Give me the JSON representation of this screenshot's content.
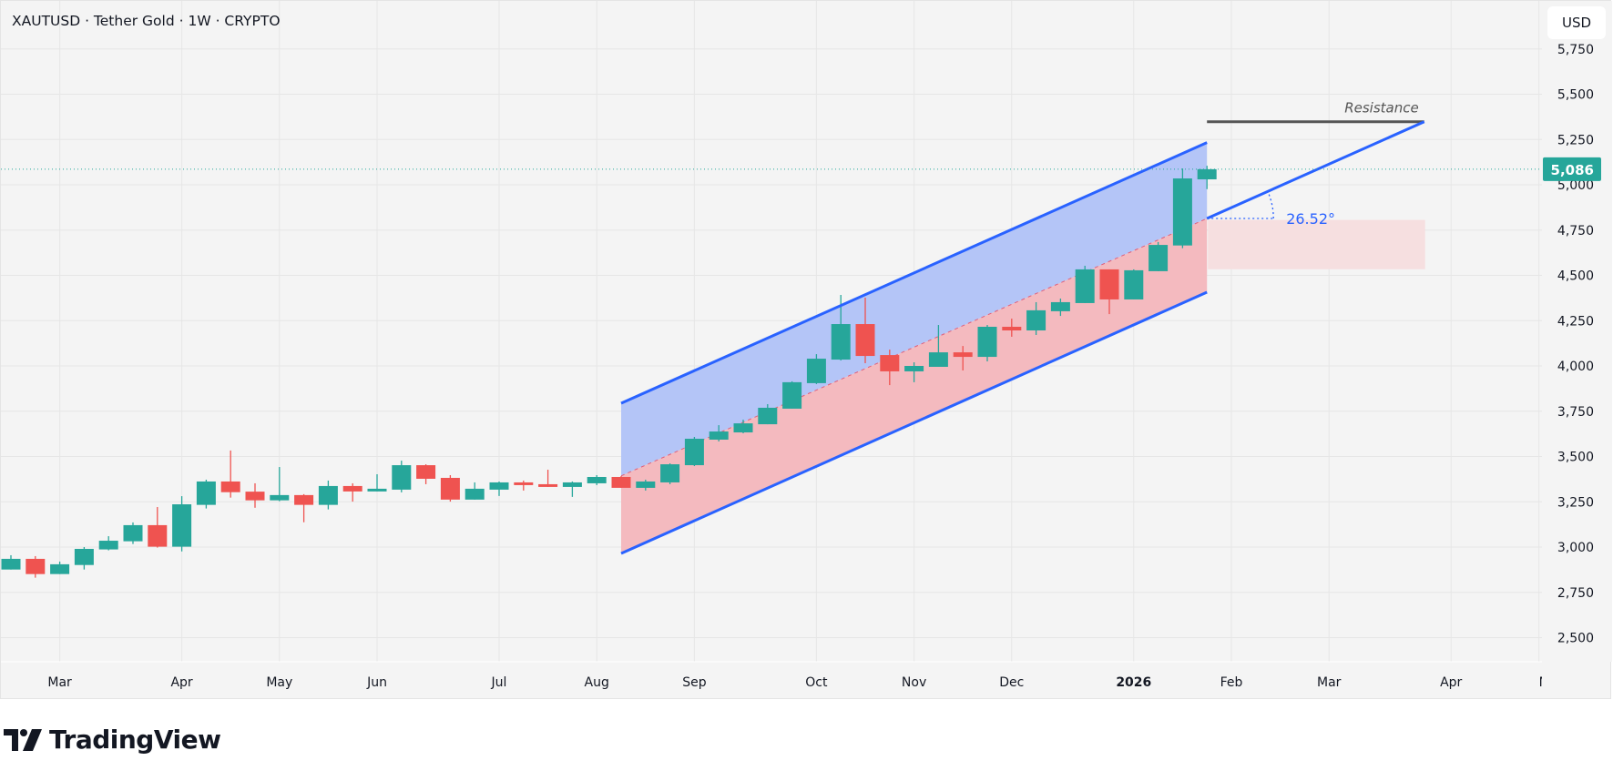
{
  "header": {
    "title": "XAUTUSD · Tether Gold · 1W · CRYPTO",
    "currency_button": "USD"
  },
  "branding": {
    "logo_text": "TradingView"
  },
  "colors": {
    "up": "#26a69a",
    "down": "#ef5350",
    "channel_line": "#2962ff",
    "channel_upper_fill": "#b4c5f7",
    "channel_lower_fill": "#f4babf",
    "zone_fill": "#f6dfe0",
    "resistance": "#555555",
    "grid": "#e6e6e6"
  },
  "chart_data": {
    "type": "candlestick",
    "symbol": "XAUTUSD",
    "timeframe": "1W",
    "ylim": [
      2400,
      5800
    ],
    "y_ticks": [
      2500,
      2750,
      3000,
      3250,
      3500,
      3750,
      4000,
      4250,
      4500,
      4750,
      5000,
      5250,
      5500,
      5750
    ],
    "last_price": 5086,
    "last_price_label": "5,086",
    "x_ticks": [
      {
        "label": "Mar",
        "bar": 2
      },
      {
        "label": "Apr",
        "bar": 7
      },
      {
        "label": "May",
        "bar": 11
      },
      {
        "label": "Jun",
        "bar": 15
      },
      {
        "label": "Jul",
        "bar": 20
      },
      {
        "label": "Aug",
        "bar": 24
      },
      {
        "label": "Sep",
        "bar": 28
      },
      {
        "label": "Oct",
        "bar": 33
      },
      {
        "label": "Nov",
        "bar": 37
      },
      {
        "label": "Dec",
        "bar": 41
      },
      {
        "label": "2026",
        "bar": 46,
        "bold": true
      },
      {
        "label": "Feb",
        "bar": 50
      },
      {
        "label": "Mar",
        "bar": 54
      },
      {
        "label": "Apr",
        "bar": 59
      },
      {
        "label": "M",
        "bar": 62.6
      }
    ],
    "candles": [
      [
        2876,
        2955,
        2876,
        2935
      ],
      [
        2935,
        2950,
        2831,
        2851
      ],
      [
        2851,
        2920,
        2851,
        2905
      ],
      [
        2901,
        3000,
        2876,
        2990
      ],
      [
        2987,
        3060,
        2982,
        3035
      ],
      [
        3032,
        3136,
        3017,
        3121
      ],
      [
        3121,
        3221,
        2997,
        3002
      ],
      [
        3002,
        3281,
        2976,
        3236
      ],
      [
        3233,
        3372,
        3213,
        3362
      ],
      [
        3362,
        3533,
        3273,
        3303
      ],
      [
        3306,
        3352,
        3217,
        3258
      ],
      [
        3258,
        3442,
        3253,
        3287
      ],
      [
        3287,
        3292,
        3137,
        3233
      ],
      [
        3233,
        3367,
        3208,
        3337
      ],
      [
        3337,
        3352,
        3251,
        3307
      ],
      [
        3307,
        3402,
        3307,
        3322
      ],
      [
        3317,
        3477,
        3302,
        3452
      ],
      [
        3452,
        3457,
        3347,
        3377
      ],
      [
        3382,
        3397,
        3251,
        3262
      ],
      [
        3262,
        3357,
        3262,
        3322
      ],
      [
        3317,
        3362,
        3282,
        3357
      ],
      [
        3357,
        3367,
        3312,
        3342
      ],
      [
        3347,
        3427,
        3332,
        3332
      ],
      [
        3332,
        3362,
        3277,
        3357
      ],
      [
        3352,
        3397,
        3342,
        3387
      ],
      [
        3387,
        3392,
        3327,
        3327
      ],
      [
        3327,
        3372,
        3312,
        3362
      ],
      [
        3357,
        3462,
        3347,
        3457
      ],
      [
        3452,
        3608,
        3447,
        3598
      ],
      [
        3593,
        3673,
        3583,
        3638
      ],
      [
        3633,
        3703,
        3628,
        3683
      ],
      [
        3678,
        3789,
        3678,
        3769
      ],
      [
        3764,
        3915,
        3764,
        3910
      ],
      [
        3905,
        4065,
        3900,
        4040
      ],
      [
        4035,
        4392,
        4030,
        4231
      ],
      [
        4231,
        4377,
        4015,
        4055
      ],
      [
        4060,
        4090,
        3894,
        3970
      ],
      [
        3970,
        4020,
        3910,
        4000
      ],
      [
        3995,
        4226,
        3995,
        4075
      ],
      [
        4075,
        4110,
        3975,
        4050
      ],
      [
        4050,
        4226,
        4025,
        4216
      ],
      [
        4216,
        4261,
        4161,
        4196
      ],
      [
        4196,
        4352,
        4171,
        4307
      ],
      [
        4302,
        4372,
        4276,
        4352
      ],
      [
        4347,
        4553,
        4347,
        4533
      ],
      [
        4533,
        4533,
        4286,
        4367
      ],
      [
        4367,
        4533,
        4367,
        4528
      ],
      [
        4523,
        4684,
        4523,
        4668
      ],
      [
        4665,
        5090,
        4650,
        5035
      ],
      [
        5030,
        5105,
        4976,
        5086
      ]
    ],
    "candle_format": [
      "open",
      "high",
      "low",
      "close"
    ],
    "drawings": {
      "channel_upper": {
        "from": [
          25,
          3794
        ],
        "to": [
          49,
          5233
        ]
      },
      "channel_mid": {
        "from": [
          25,
          3393
        ],
        "to": [
          49,
          4814
        ]
      },
      "channel_lower": {
        "from": [
          25,
          2965
        ],
        "to": [
          49,
          4407
        ]
      },
      "trend_line": {
        "from": [
          49,
          4814
        ],
        "to": [
          57.9,
          5348
        ],
        "angle_label": "26.52°"
      },
      "resistance": {
        "from": [
          49,
          5348
        ],
        "to": [
          57.9,
          5348
        ],
        "label": "Resistance"
      },
      "zone": {
        "from_bar": 49,
        "to_bar": 57.9,
        "top": 4806,
        "bottom": 4534
      }
    }
  }
}
